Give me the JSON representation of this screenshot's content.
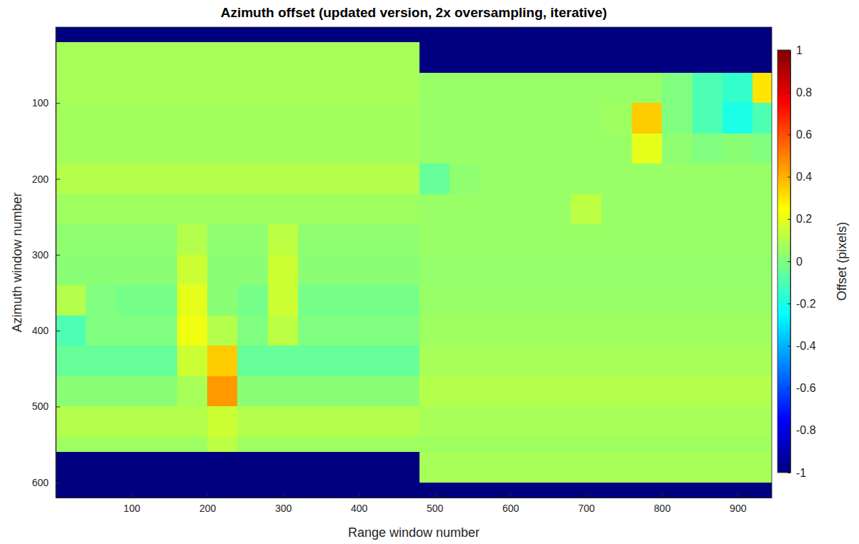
{
  "chart_data": {
    "type": "heatmap",
    "title": "Azimuth offset (updated version, 2x oversampling, iterative)",
    "x_label": "Range window number",
    "y_label": "Azimuth window number",
    "colorbar_label": "Offset (pixels)",
    "xlim": [
      0,
      945
    ],
    "ylim": [
      0,
      620
    ],
    "xticks": [
      100,
      200,
      300,
      400,
      500,
      600,
      700,
      800,
      900
    ],
    "yticks": [
      100,
      200,
      300,
      400,
      500,
      600
    ],
    "clim": [
      -1,
      1
    ],
    "cticks": [
      -1,
      -0.8,
      -0.6,
      -0.4,
      -0.2,
      0,
      0.2,
      0.4,
      0.6,
      0.8,
      1
    ],
    "x_edges": [
      0,
      40,
      80,
      120,
      160,
      200,
      240,
      280,
      320,
      360,
      400,
      440,
      480,
      520,
      560,
      600,
      640,
      680,
      720,
      760,
      800,
      840,
      880,
      920,
      945
    ],
    "y_edges": [
      0,
      20,
      60,
      100,
      140,
      180,
      220,
      260,
      300,
      340,
      380,
      420,
      460,
      500,
      540,
      560,
      600,
      620
    ],
    "z": [
      [
        -1,
        -1,
        -1,
        -1,
        -1,
        -1,
        -1,
        -1,
        -1,
        -1,
        -1,
        -1,
        -1,
        -1,
        -1,
        -1,
        -1,
        -1,
        -1,
        -1,
        -1,
        -1,
        -1,
        -1
      ],
      [
        0.08,
        0.08,
        0.08,
        0.08,
        0.08,
        0.08,
        0.08,
        0.08,
        0.08,
        0.08,
        0.08,
        0.08,
        -1,
        -1,
        -1,
        -1,
        -1,
        -1,
        -1,
        -1,
        -1,
        -1,
        -1,
        -1
      ],
      [
        0.08,
        0.08,
        0.08,
        0.08,
        0.08,
        0.08,
        0.08,
        0.08,
        0.08,
        0.08,
        0.08,
        0.08,
        0.05,
        0.05,
        0.05,
        0.05,
        0.05,
        0.05,
        0.05,
        0.05,
        0,
        -0.1,
        -0.15,
        0.3
      ],
      [
        0.07,
        0.07,
        0.07,
        0.07,
        0.07,
        0.07,
        0.07,
        0.07,
        0.07,
        0.07,
        0.07,
        0.07,
        0.05,
        0.05,
        0.05,
        0.05,
        0.05,
        0.05,
        0.06,
        0.35,
        0,
        -0.1,
        -0.2,
        -0.1
      ],
      [
        0.07,
        0.07,
        0.07,
        0.07,
        0.07,
        0.07,
        0.07,
        0.07,
        0.07,
        0.07,
        0.07,
        0.07,
        0.05,
        0.05,
        0.05,
        0.05,
        0.05,
        0.05,
        0.05,
        0.2,
        0.03,
        0,
        0.02,
        0
      ],
      [
        0.1,
        0.1,
        0.1,
        0.1,
        0.1,
        0.1,
        0.1,
        0.1,
        0.1,
        0.1,
        0.1,
        0.1,
        -0.05,
        0.03,
        0.05,
        0.05,
        0.05,
        0.05,
        0.05,
        0.05,
        0.05,
        0.05,
        0.05,
        0.05
      ],
      [
        0.06,
        0.06,
        0.06,
        0.06,
        0.06,
        0.06,
        0.06,
        0.06,
        0.06,
        0.06,
        0.06,
        0.06,
        0.05,
        0.05,
        0.05,
        0.05,
        0.05,
        0.12,
        0.05,
        0.05,
        0.05,
        0.05,
        0.05,
        0.05
      ],
      [
        0.03,
        0.03,
        0.03,
        0.03,
        0.1,
        0.03,
        0.03,
        0.12,
        0.03,
        0.03,
        0.03,
        0.03,
        0.05,
        0.05,
        0.05,
        0.05,
        0.05,
        0.05,
        0.05,
        0.05,
        0.05,
        0.05,
        0.05,
        0.05
      ],
      [
        0.02,
        0.02,
        0.02,
        0.02,
        0.15,
        0.02,
        0.02,
        0.15,
        0.02,
        0.02,
        0.02,
        0.02,
        0.04,
        0.04,
        0.04,
        0.04,
        0.04,
        0.04,
        0.04,
        0.04,
        0.04,
        0.04,
        0.04,
        0.04
      ],
      [
        0.1,
        0,
        -0.02,
        -0.02,
        0.2,
        0.02,
        -0.02,
        0.15,
        -0.02,
        -0.02,
        -0.02,
        -0.02,
        0.05,
        0.05,
        0.05,
        0.05,
        0.05,
        0.05,
        0.05,
        0.05,
        0.05,
        0.05,
        0.05,
        0.05
      ],
      [
        -0.1,
        0,
        0,
        0,
        0.22,
        0.1,
        0,
        0.12,
        0,
        0,
        0,
        0,
        0.06,
        0.06,
        0.06,
        0.06,
        0.06,
        0.06,
        0.06,
        0.06,
        0.06,
        0.06,
        0.06,
        0.06
      ],
      [
        -0.05,
        -0.05,
        -0.05,
        -0.05,
        0.15,
        0.35,
        -0.05,
        -0.05,
        -0.05,
        -0.05,
        -0.05,
        -0.05,
        0.08,
        0.08,
        0.08,
        0.08,
        0.08,
        0.08,
        0.08,
        0.08,
        0.08,
        0.08,
        0.08,
        0.08
      ],
      [
        0.02,
        0.02,
        0.02,
        0.02,
        0.08,
        0.45,
        0.02,
        0.02,
        0.02,
        0.02,
        0.02,
        0.02,
        0.1,
        0.1,
        0.1,
        0.1,
        0.1,
        0.1,
        0.1,
        0.1,
        0.1,
        0.1,
        0.1,
        0.1
      ],
      [
        0.1,
        0.1,
        0.1,
        0.1,
        0.1,
        0.15,
        0.1,
        0.1,
        0.1,
        0.1,
        0.1,
        0.1,
        0.08,
        0.08,
        0.08,
        0.08,
        0.08,
        0.08,
        0.08,
        0.08,
        0.08,
        0.08,
        0.08,
        0.08
      ],
      [
        0.06,
        0.06,
        0.06,
        0.06,
        0.06,
        0.12,
        0.06,
        0.06,
        0.06,
        0.06,
        0.06,
        0.06,
        0.06,
        0.06,
        0.06,
        0.06,
        0.06,
        0.06,
        0.06,
        0.06,
        0.06,
        0.06,
        0.06,
        0.06
      ],
      [
        -1,
        -1,
        -1,
        -1,
        -1,
        -1,
        -1,
        -1,
        -1,
        -1,
        -1,
        -1,
        0.08,
        0.08,
        0.08,
        0.08,
        0.08,
        0.08,
        0.08,
        0.08,
        0.08,
        0.08,
        0.08,
        0.08
      ],
      [
        -1,
        -1,
        -1,
        -1,
        -1,
        -1,
        -1,
        -1,
        -1,
        -1,
        -1,
        -1,
        -1,
        -1,
        -1,
        -1,
        -1,
        -1,
        -1,
        -1,
        -1,
        -1,
        -1,
        -1
      ]
    ]
  }
}
